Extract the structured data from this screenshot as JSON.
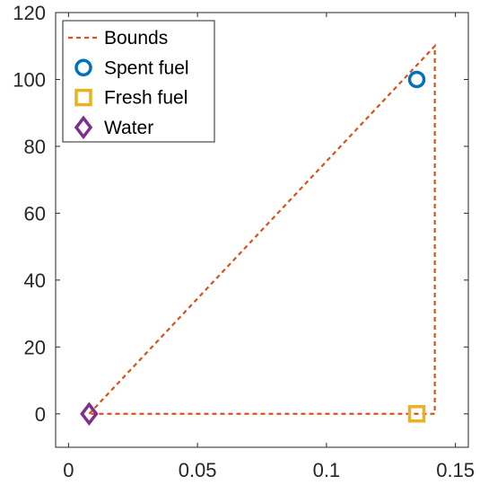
{
  "chart_data": {
    "type": "scatter",
    "title": "",
    "xlabel": "",
    "ylabel": "",
    "xlim": [
      -0.005,
      0.155
    ],
    "ylim": [
      -10,
      120
    ],
    "x_ticks": [
      0,
      0.05,
      0.1,
      0.15
    ],
    "x_tick_labels": [
      "0",
      "0.05",
      "0.1",
      "0.15"
    ],
    "y_ticks": [
      0,
      20,
      40,
      60,
      80,
      100,
      120
    ],
    "y_tick_labels": [
      "0",
      "20",
      "40",
      "60",
      "80",
      "100",
      "120"
    ],
    "grid": false,
    "legend_position": "top-left",
    "series": [
      {
        "name": "Bounds",
        "kind": "line",
        "style": "dashed",
        "color": "#D95319",
        "x": [
          0.008,
          0.142,
          0.142,
          0.008
        ],
        "y": [
          0,
          110,
          0,
          0
        ]
      },
      {
        "name": "Spent fuel",
        "kind": "marker",
        "marker": "circle",
        "color": "#0072BD",
        "x": [
          0.135
        ],
        "y": [
          100
        ]
      },
      {
        "name": "Fresh fuel",
        "kind": "marker",
        "marker": "square",
        "color": "#EDB120",
        "x": [
          0.135
        ],
        "y": [
          0
        ]
      },
      {
        "name": "Water",
        "kind": "marker",
        "marker": "diamond",
        "color": "#7E2F8E",
        "x": [
          0.008
        ],
        "y": [
          0
        ]
      }
    ]
  }
}
